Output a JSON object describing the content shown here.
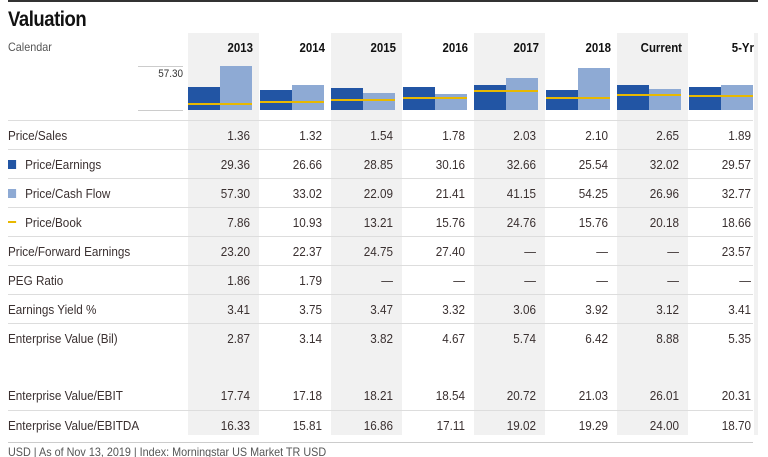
{
  "title": "Valuation",
  "calendar_label": "Calendar",
  "columns": [
    "2013",
    "2014",
    "2015",
    "2016",
    "2017",
    "2018",
    "Current",
    "5-Yr"
  ],
  "chart": {
    "axis_max_label": "57.30",
    "axis_max": 57.3,
    "colors": {
      "Price/Earnings": "#2255a4",
      "Price/Cash Flow": "#8eaad4",
      "Price/Book": "#e8b800"
    }
  },
  "rows": [
    {
      "label": "Price/Sales",
      "legend": null,
      "values": [
        "1.36",
        "1.32",
        "1.54",
        "1.78",
        "2.03",
        "2.10",
        "2.65",
        "1.89"
      ]
    },
    {
      "label": "Price/Earnings",
      "legend": "square-dark",
      "values": [
        "29.36",
        "26.66",
        "28.85",
        "30.16",
        "32.66",
        "25.54",
        "32.02",
        "29.57"
      ]
    },
    {
      "label": "Price/Cash Flow",
      "legend": "square-light",
      "values": [
        "57.30",
        "33.02",
        "22.09",
        "21.41",
        "41.15",
        "54.25",
        "26.96",
        "32.77"
      ]
    },
    {
      "label": "Price/Book",
      "legend": "line-yellow",
      "values": [
        "7.86",
        "10.93",
        "13.21",
        "15.76",
        "24.76",
        "15.76",
        "20.18",
        "18.66"
      ]
    },
    {
      "label": "Price/Forward Earnings",
      "legend": null,
      "values": [
        "23.20",
        "22.37",
        "24.75",
        "27.40",
        "—",
        "—",
        "—",
        "23.57"
      ]
    },
    {
      "label": "PEG Ratio",
      "legend": null,
      "values": [
        "1.86",
        "1.79",
        "—",
        "—",
        "—",
        "—",
        "—",
        "—"
      ]
    },
    {
      "label": "Earnings Yield %",
      "legend": null,
      "values": [
        "3.41",
        "3.75",
        "3.47",
        "3.32",
        "3.06",
        "3.92",
        "3.12",
        "3.41"
      ]
    },
    {
      "label": "Enterprise Value (Bil)",
      "legend": null,
      "values": [
        "2.87",
        "3.14",
        "3.82",
        "4.67",
        "5.74",
        "6.42",
        "8.88",
        "5.35"
      ]
    },
    {
      "label": "Enterprise Value/EBIT",
      "legend": null,
      "values": [
        "17.74",
        "17.18",
        "18.21",
        "18.54",
        "20.72",
        "21.03",
        "26.01",
        "20.31"
      ]
    },
    {
      "label": "Enterprise Value/EBITDA",
      "legend": null,
      "values": [
        "16.33",
        "15.81",
        "16.86",
        "17.11",
        "19.02",
        "19.29",
        "24.00",
        "18.70"
      ]
    }
  ],
  "footer": "USD | As of Nov 13, 2019 | Index: Morningstar US Market TR USD"
}
